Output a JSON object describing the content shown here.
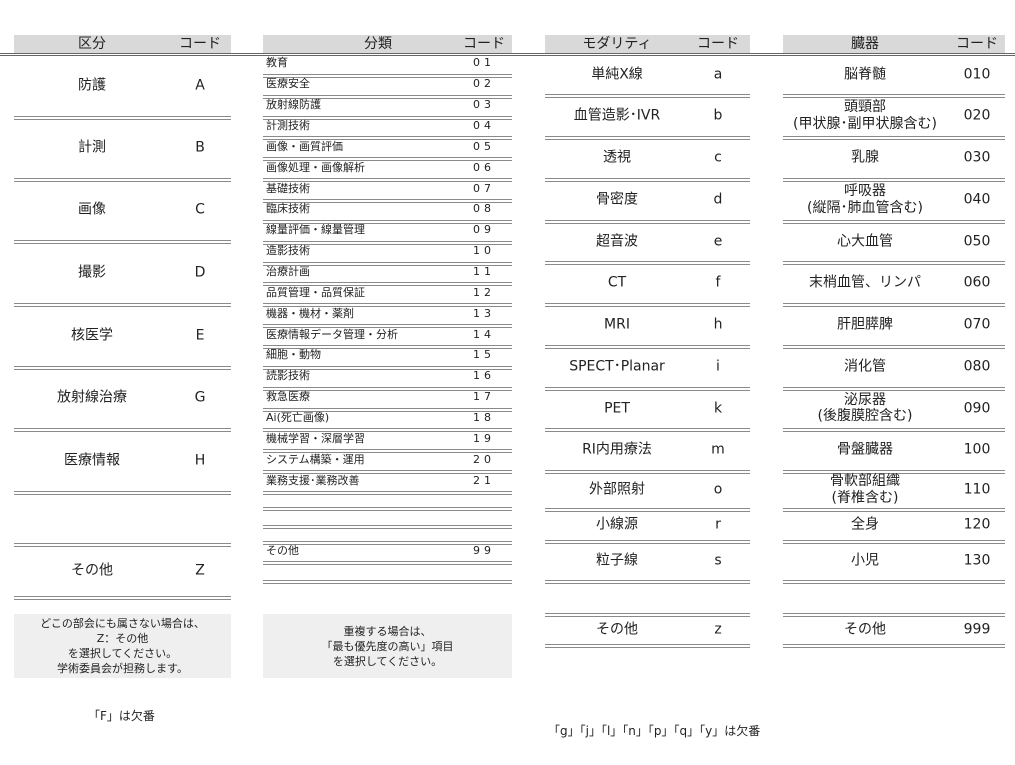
{
  "kubun": {
    "header": {
      "name": "区分",
      "code": "コード"
    },
    "rows": [
      {
        "name": "防護",
        "code": "A"
      },
      {
        "name": "計測",
        "code": "B"
      },
      {
        "name": "画像",
        "code": "C"
      },
      {
        "name": "撮影",
        "code": "D"
      },
      {
        "name": "核医学",
        "code": "E"
      },
      {
        "name": "放射線治療",
        "code": "G"
      },
      {
        "name": "医療情報",
        "code": "H"
      },
      {
        "name": "",
        "code": ""
      },
      {
        "name": "その他",
        "code": "Z"
      }
    ],
    "note": [
      "どこの部会にも属さない場合は、",
      "Z：その他",
      "を選択してください。",
      "学術委員会が担務します。"
    ],
    "footnote": "「F」は欠番"
  },
  "bunrui": {
    "header": {
      "name": "分類",
      "code": "コード"
    },
    "rows": [
      {
        "name": "教育",
        "code": "01"
      },
      {
        "name": "医療安全",
        "code": "02"
      },
      {
        "name": "放射線防護",
        "code": "03"
      },
      {
        "name": "計測技術",
        "code": "04"
      },
      {
        "name": "画像・画質評価",
        "code": "05"
      },
      {
        "name": "画像処理・画像解析",
        "code": "06"
      },
      {
        "name": "基礎技術",
        "code": "07"
      },
      {
        "name": "臨床技術",
        "code": "08"
      },
      {
        "name": "線量評価・線量管理",
        "code": "09"
      },
      {
        "name": "造影技術",
        "code": "10"
      },
      {
        "name": "治療計画",
        "code": "11"
      },
      {
        "name": "品質管理・品質保証",
        "code": "12"
      },
      {
        "name": "機器・機材・薬剤",
        "code": "13"
      },
      {
        "name": "医療情報データ管理・分析",
        "code": "14"
      },
      {
        "name": "細胞・動物",
        "code": "15"
      },
      {
        "name": "読影技術",
        "code": "16"
      },
      {
        "name": "救急医療",
        "code": "17"
      },
      {
        "name": "Ai(死亡画像)",
        "code": "18"
      },
      {
        "name": "機械学習・深層学習",
        "code": "19"
      },
      {
        "name": "システム構築・運用",
        "code": "20"
      },
      {
        "name": "業務支援･業務改善",
        "code": "21"
      },
      {
        "name": "",
        "code": ""
      },
      {
        "name": "",
        "code": ""
      },
      {
        "name": "",
        "code": ""
      },
      {
        "name": "その他",
        "code": "99"
      },
      {
        "name": "",
        "code": ""
      }
    ],
    "note": [
      "重複する場合は、",
      "「最も優先度の高い」項目",
      "を選択してください。"
    ]
  },
  "modality": {
    "header": {
      "name": "モダリティ",
      "code": "コード"
    },
    "rows": [
      {
        "name": "単純X線",
        "code": "a"
      },
      {
        "name": "血管造影･IVR",
        "code": "b"
      },
      {
        "name": "透視",
        "code": "c"
      },
      {
        "name": "骨密度",
        "code": "d"
      },
      {
        "name": "超音波",
        "code": "e"
      },
      {
        "name": "CT",
        "code": "f"
      },
      {
        "name": "MRI",
        "code": "h"
      },
      {
        "name": "SPECT･Planar",
        "code": "i"
      },
      {
        "name": "PET",
        "code": "k"
      },
      {
        "name": "RI内用療法",
        "code": "m"
      },
      {
        "name": "外部照射",
        "code": "o"
      },
      {
        "name": "小線源",
        "code": "r"
      },
      {
        "name": "粒子線",
        "code": "s"
      },
      {
        "name": "",
        "code": ""
      },
      {
        "name": "その他",
        "code": "z"
      }
    ],
    "footnote": "「g」「j」「l」「n」「p」「q」「y」は欠番"
  },
  "organ": {
    "header": {
      "name": "臓器",
      "code": "コード"
    },
    "rows": [
      {
        "name": "脳脊髄",
        "code": "010"
      },
      {
        "name": "頭頸部\n(甲状腺･副甲状腺含む)",
        "code": "020"
      },
      {
        "name": "乳腺",
        "code": "030"
      },
      {
        "name": "呼吸器\n(縦隔･肺血管含む)",
        "code": "040"
      },
      {
        "name": "心大血管",
        "code": "050"
      },
      {
        "name": "末梢血管、リンパ",
        "code": "060"
      },
      {
        "name": "肝胆膵脾",
        "code": "070"
      },
      {
        "name": "消化管",
        "code": "080"
      },
      {
        "name": "泌尿器\n(後腹膜腔含む)",
        "code": "090"
      },
      {
        "name": "骨盤臓器",
        "code": "100"
      },
      {
        "name": "骨軟部組織\n(脊椎含む)",
        "code": "110"
      },
      {
        "name": "全身",
        "code": "120"
      },
      {
        "name": "小児",
        "code": "130"
      },
      {
        "name": "",
        "code": ""
      },
      {
        "name": "その他",
        "code": "999"
      }
    ]
  }
}
